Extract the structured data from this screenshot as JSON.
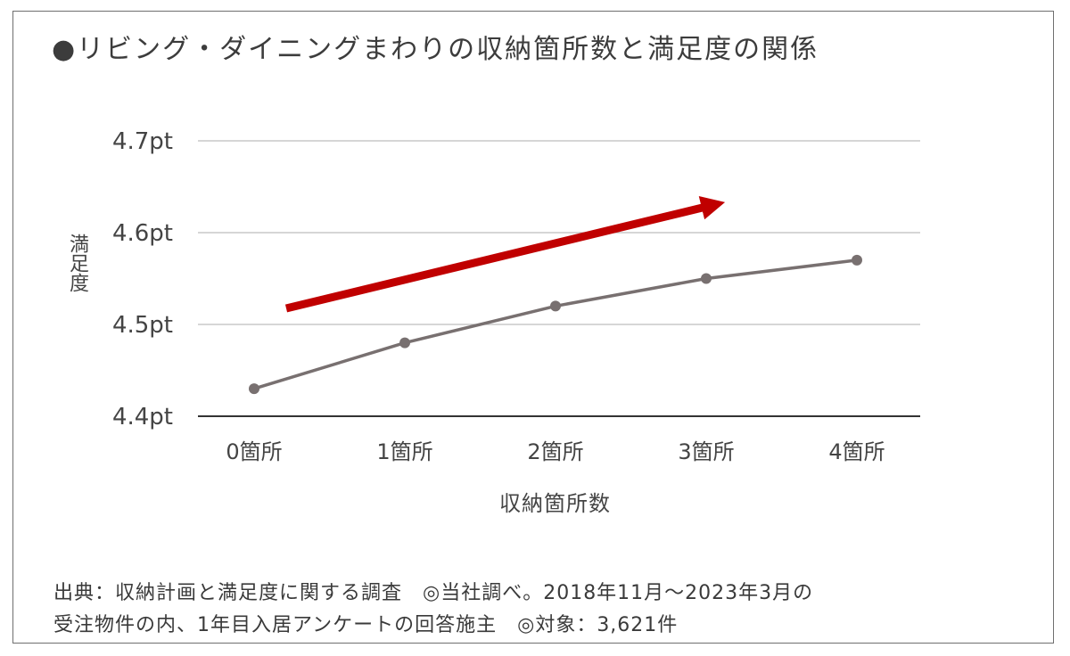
{
  "chart_data": {
    "type": "line",
    "title": "●リビング・ダイニングまわりの収納箇所数と満足度の関係",
    "xlabel": "収納箇所数",
    "ylabel": "満足度",
    "categories": [
      "0箇所",
      "1箇所",
      "2箇所",
      "3箇所",
      "4箇所"
    ],
    "series": [
      {
        "values": [
          4.43,
          4.48,
          4.52,
          4.55,
          4.57
        ]
      }
    ],
    "yticks": [
      "4.4pt",
      "4.5pt",
      "4.6pt",
      "4.7pt"
    ],
    "ylim": [
      4.4,
      4.7
    ],
    "grid": true,
    "annotation": {
      "type": "trend-arrow",
      "direction": "up"
    },
    "colors": {
      "line": "#787070",
      "arrow": "#c00000",
      "grid": "#bdbdbd",
      "axis": "#333333"
    }
  },
  "source": {
    "line1": "出典：収納計画と満足度に関する調査　◎当社調べ。2018年11月～2023年3月の",
    "line2": "受注物件の内、1年目入居アンケートの回答施主　◎対象：3,621件"
  }
}
